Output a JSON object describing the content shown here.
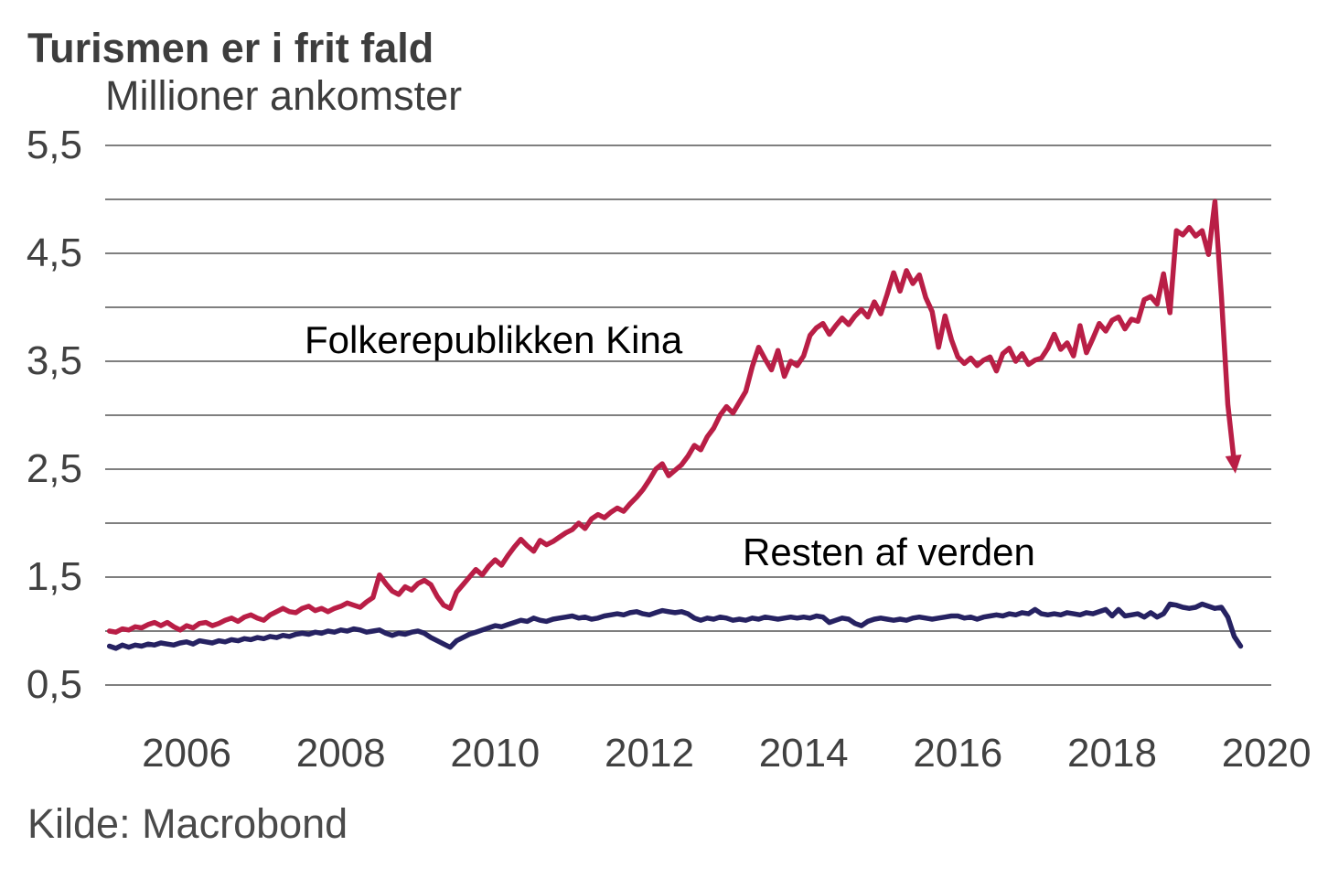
{
  "title": "Turismen er i frit fald",
  "subtitle": "Millioner ankomster",
  "source": "Kilde: Macrobond",
  "colors": {
    "kina": "#b91e46",
    "verden": "#262262",
    "grid": "#7f7f7f",
    "text": "#3d3d3d"
  },
  "chart_data": {
    "type": "line",
    "title": "Turismen er i frit fald",
    "ylabel": "Millioner ankomster",
    "ylim": [
      0.5,
      5.5
    ],
    "grid_interval": 0.5,
    "grid": true,
    "legend_position": "inline-annotations",
    "x_start": "2005-01",
    "frequency": "monthly",
    "x_tick_years": [
      "2006",
      "2008",
      "2010",
      "2012",
      "2014",
      "2016",
      "2018",
      "2020"
    ],
    "y_ticks": [
      {
        "value": 5.5,
        "label": "5,5"
      },
      {
        "value": 4.5,
        "label": "4,5"
      },
      {
        "value": 3.5,
        "label": "3,5"
      },
      {
        "value": 2.5,
        "label": "2,5"
      },
      {
        "value": 1.5,
        "label": "1,5"
      },
      {
        "value": 0.5,
        "label": "0,5"
      }
    ],
    "series": [
      {
        "name": "Resten af verden",
        "color": "#262262",
        "end_marker": "none",
        "values": [
          0.86,
          0.84,
          0.87,
          0.85,
          0.87,
          0.86,
          0.88,
          0.87,
          0.89,
          0.88,
          0.87,
          0.89,
          0.9,
          0.88,
          0.91,
          0.9,
          0.89,
          0.91,
          0.9,
          0.92,
          0.91,
          0.93,
          0.92,
          0.94,
          0.93,
          0.95,
          0.94,
          0.96,
          0.95,
          0.97,
          0.98,
          0.97,
          0.99,
          0.98,
          1.0,
          0.99,
          1.01,
          1.0,
          1.02,
          1.01,
          0.99,
          1.0,
          1.01,
          0.98,
          0.96,
          0.98,
          0.97,
          0.99,
          1.0,
          0.98,
          0.94,
          0.91,
          0.88,
          0.85,
          0.91,
          0.94,
          0.97,
          0.99,
          1.01,
          1.03,
          1.05,
          1.04,
          1.06,
          1.08,
          1.1,
          1.09,
          1.12,
          1.1,
          1.09,
          1.11,
          1.12,
          1.13,
          1.14,
          1.12,
          1.13,
          1.11,
          1.12,
          1.14,
          1.15,
          1.16,
          1.15,
          1.17,
          1.18,
          1.16,
          1.15,
          1.17,
          1.19,
          1.18,
          1.17,
          1.18,
          1.16,
          1.12,
          1.1,
          1.12,
          1.11,
          1.13,
          1.12,
          1.1,
          1.11,
          1.1,
          1.12,
          1.11,
          1.13,
          1.12,
          1.11,
          1.12,
          1.13,
          1.12,
          1.13,
          1.12,
          1.14,
          1.13,
          1.08,
          1.1,
          1.12,
          1.11,
          1.07,
          1.05,
          1.09,
          1.11,
          1.12,
          1.11,
          1.1,
          1.11,
          1.1,
          1.12,
          1.13,
          1.12,
          1.11,
          1.12,
          1.13,
          1.14,
          1.14,
          1.12,
          1.13,
          1.11,
          1.13,
          1.14,
          1.15,
          1.14,
          1.16,
          1.15,
          1.17,
          1.16,
          1.2,
          1.16,
          1.15,
          1.16,
          1.15,
          1.17,
          1.16,
          1.15,
          1.17,
          1.16,
          1.18,
          1.2,
          1.14,
          1.2,
          1.14,
          1.15,
          1.16,
          1.13,
          1.17,
          1.13,
          1.16,
          1.25,
          1.24,
          1.22,
          1.21,
          1.22,
          1.25,
          1.23,
          1.21,
          1.22,
          1.13,
          0.95,
          0.86
        ]
      },
      {
        "name": "Folkerepublikken Kina",
        "color": "#b91e46",
        "end_marker": "arrow",
        "values": [
          1.0,
          0.99,
          1.02,
          1.01,
          1.04,
          1.03,
          1.06,
          1.08,
          1.05,
          1.08,
          1.04,
          1.01,
          1.05,
          1.03,
          1.07,
          1.08,
          1.05,
          1.07,
          1.1,
          1.12,
          1.09,
          1.13,
          1.15,
          1.12,
          1.1,
          1.15,
          1.18,
          1.21,
          1.18,
          1.17,
          1.21,
          1.23,
          1.19,
          1.21,
          1.18,
          1.21,
          1.23,
          1.26,
          1.24,
          1.22,
          1.27,
          1.31,
          1.52,
          1.44,
          1.37,
          1.34,
          1.41,
          1.38,
          1.44,
          1.47,
          1.43,
          1.32,
          1.24,
          1.21,
          1.36,
          1.43,
          1.5,
          1.57,
          1.52,
          1.6,
          1.66,
          1.61,
          1.7,
          1.78,
          1.85,
          1.79,
          1.74,
          1.84,
          1.8,
          1.83,
          1.87,
          1.91,
          1.94,
          2.0,
          1.95,
          2.04,
          2.08,
          2.05,
          2.1,
          2.14,
          2.11,
          2.18,
          2.24,
          2.31,
          2.4,
          2.5,
          2.55,
          2.44,
          2.49,
          2.54,
          2.62,
          2.72,
          2.68,
          2.8,
          2.88,
          3.0,
          3.08,
          3.02,
          3.12,
          3.22,
          3.45,
          3.63,
          3.52,
          3.42,
          3.6,
          3.36,
          3.5,
          3.46,
          3.55,
          3.74,
          3.81,
          3.85,
          3.75,
          3.83,
          3.9,
          3.84,
          3.92,
          3.98,
          3.91,
          4.05,
          3.94,
          4.12,
          4.32,
          4.15,
          4.34,
          4.22,
          4.3,
          4.09,
          3.96,
          3.63,
          3.92,
          3.7,
          3.54,
          3.48,
          3.53,
          3.46,
          3.51,
          3.54,
          3.41,
          3.57,
          3.62,
          3.5,
          3.57,
          3.47,
          3.51,
          3.53,
          3.62,
          3.75,
          3.61,
          3.67,
          3.55,
          3.83,
          3.58,
          3.71,
          3.85,
          3.78,
          3.88,
          3.91,
          3.8,
          3.89,
          3.87,
          4.07,
          4.1,
          4.03,
          4.31,
          3.95,
          4.71,
          4.67,
          4.74,
          4.66,
          4.71,
          4.49,
          4.98,
          4.1,
          3.1,
          2.56
        ]
      }
    ],
    "annotations": [
      {
        "text": "Folkerepublikken Kina",
        "color": "#b91e46"
      },
      {
        "text": "Resten af verden",
        "color": "#262262"
      }
    ]
  }
}
